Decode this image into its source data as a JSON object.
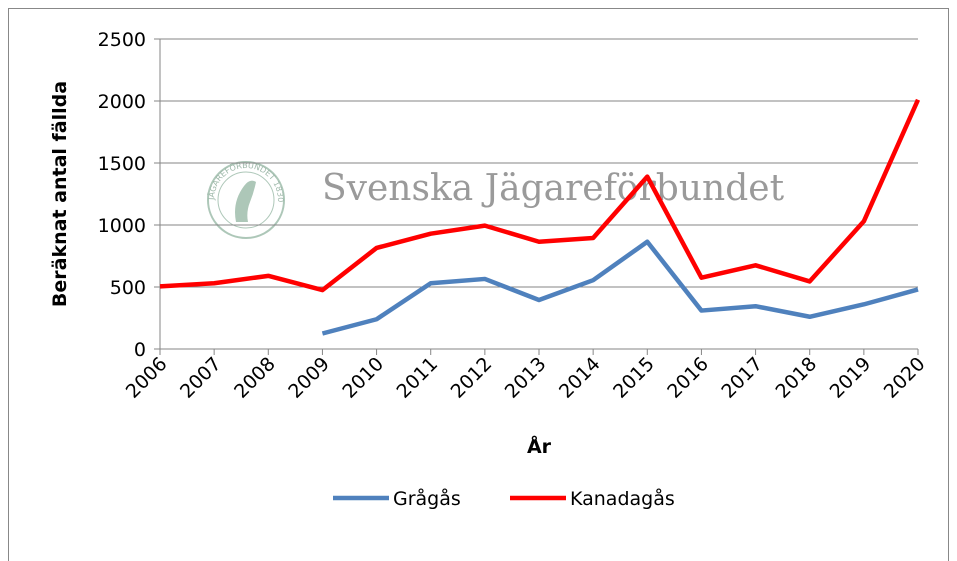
{
  "chart_data": {
    "type": "line",
    "y_label": "Beräknat antal fällda",
    "x_label": "År",
    "watermark": "Svenska Jägareförbundet",
    "watermark_logo": "JÄGAREFÖRBUNDET 1830",
    "categories": [
      "2006",
      "2007",
      "2008",
      "2009",
      "2010",
      "2011",
      "2012",
      "2013",
      "2014",
      "2015",
      "2016",
      "2017",
      "2018",
      "2019",
      "2020"
    ],
    "series": [
      {
        "name": "Grågås",
        "color": "#4f81bd",
        "values": [
          null,
          null,
          null,
          125,
          240,
          530,
          565,
          395,
          555,
          865,
          310,
          345,
          260,
          360,
          480
        ]
      },
      {
        "name": "Kanadagås",
        "color": "#ff0000",
        "values": [
          505,
          530,
          590,
          475,
          815,
          930,
          995,
          865,
          895,
          1390,
          575,
          675,
          545,
          1030,
          2010
        ]
      }
    ],
    "ylim": [
      0,
      2500
    ],
    "yticks": [
      0,
      500,
      1000,
      1500,
      2000,
      2500
    ],
    "grid": true,
    "legend": "bottom"
  }
}
